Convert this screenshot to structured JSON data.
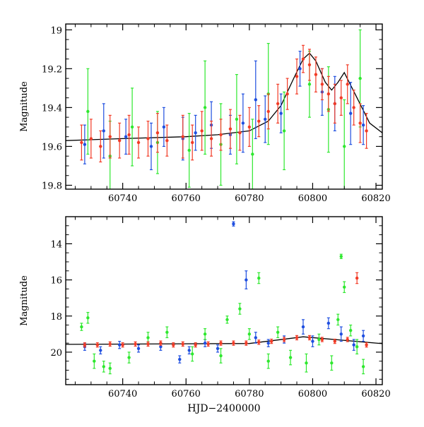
{
  "colors": {
    "blue": "#1f4fe0",
    "green": "#2ee82e",
    "red": "#f23b26",
    "model": "#000000",
    "axis": "#000000",
    "background": "#ffffff"
  },
  "chart_data": [
    {
      "type": "scatter",
      "panel": "top",
      "title": "",
      "xlabel": "",
      "ylabel": "Magnitude",
      "xlim": [
        60722,
        60822
      ],
      "ylim": [
        19.82,
        18.97
      ],
      "y_inverted": true,
      "xticks": [
        60740,
        60760,
        60780,
        60800,
        60820
      ],
      "xtick_labels": [
        "60740",
        "60760",
        "60780",
        "60800",
        "60820"
      ],
      "yticks": [
        19.0,
        19.2,
        19.4,
        19.6,
        19.8
      ],
      "ytick_labels": [
        "19",
        "19.2",
        "19.4",
        "19.6",
        "19.8"
      ],
      "grid": false,
      "legend": "none",
      "error_bars": true,
      "model_curve": {
        "x": [
          60722,
          60740,
          60760,
          60770,
          60780,
          60786,
          60790,
          60794,
          60797,
          60799,
          60801,
          60804,
          60806,
          60808,
          60810,
          60814,
          60818,
          60822
        ],
        "y": [
          19.57,
          19.56,
          19.55,
          19.54,
          19.52,
          19.47,
          19.39,
          19.25,
          19.15,
          19.12,
          19.16,
          19.27,
          19.31,
          19.27,
          19.22,
          19.35,
          19.48,
          19.53
        ]
      },
      "series": [
        {
          "color": "blue",
          "x": [
            60728,
            60734,
            60741,
            60749,
            60753,
            60759,
            60763,
            60768,
            60774,
            60778,
            60782,
            60785,
            60790,
            60796,
            60803,
            60807,
            60812,
            60816
          ],
          "y": [
            19.59,
            19.52,
            19.55,
            19.6,
            19.5,
            19.56,
            19.53,
            19.49,
            19.54,
            19.48,
            19.36,
            19.46,
            19.43,
            19.2,
            19.32,
            19.38,
            19.43,
            19.49
          ],
          "err": [
            0.1,
            0.14,
            0.09,
            0.12,
            0.1,
            0.11,
            0.09,
            0.12,
            0.1,
            0.15,
            0.2,
            0.12,
            0.1,
            0.09,
            0.12,
            0.14,
            0.16,
            0.1
          ]
        },
        {
          "color": "green",
          "x": [
            60729,
            60736,
            60743,
            60751,
            60761,
            60766,
            60771,
            60776,
            60781,
            60786,
            60791,
            60799,
            60805,
            60810,
            60815
          ],
          "y": [
            19.42,
            19.65,
            19.5,
            19.58,
            19.62,
            19.4,
            19.59,
            19.46,
            19.64,
            19.33,
            19.52,
            19.28,
            19.41,
            19.6,
            19.25
          ],
          "err": [
            0.22,
            0.18,
            0.2,
            0.16,
            0.19,
            0.24,
            0.21,
            0.23,
            0.18,
            0.26,
            0.2,
            0.17,
            0.22,
            0.24,
            0.25
          ]
        },
        {
          "color": "red",
          "x": [
            60727,
            60730,
            60733,
            60736,
            60739,
            60742,
            60745,
            60748,
            60751,
            60754,
            60759,
            60762,
            60765,
            60768,
            60771,
            60774,
            60777,
            60780,
            60783,
            60786,
            60789,
            60792,
            60795,
            60797,
            60799,
            60801,
            60803,
            60805,
            60807,
            60809,
            60811,
            60813,
            60815,
            60817
          ],
          "y": [
            19.58,
            19.56,
            19.6,
            19.55,
            19.57,
            19.54,
            19.58,
            19.56,
            19.53,
            19.57,
            19.55,
            19.58,
            19.52,
            19.56,
            19.54,
            19.51,
            19.53,
            19.5,
            19.47,
            19.42,
            19.38,
            19.33,
            19.24,
            19.15,
            19.18,
            19.23,
            19.28,
            19.33,
            19.38,
            19.35,
            19.28,
            19.4,
            19.48,
            19.52
          ],
          "err": [
            0.09,
            0.1,
            0.08,
            0.11,
            0.09,
            0.1,
            0.08,
            0.09,
            0.1,
            0.08,
            0.11,
            0.09,
            0.1,
            0.09,
            0.08,
            0.1,
            0.09,
            0.1,
            0.08,
            0.09,
            0.1,
            0.08,
            0.09,
            0.07,
            0.08,
            0.09,
            0.08,
            0.09,
            0.1,
            0.09,
            0.1,
            0.09,
            0.1,
            0.09
          ]
        }
      ]
    },
    {
      "type": "scatter",
      "panel": "bottom",
      "title": "",
      "xlabel": "HJD−2400000",
      "ylabel": "Magnitude",
      "xlim": [
        60722,
        60822
      ],
      "ylim": [
        21.8,
        12.5
      ],
      "y_inverted": true,
      "xticks": [
        60740,
        60760,
        60780,
        60800,
        60820
      ],
      "xtick_labels": [
        "60740",
        "60760",
        "60780",
        "60800",
        "60820"
      ],
      "yticks": [
        14,
        16,
        18,
        20
      ],
      "ytick_labels": [
        "14",
        "16",
        "18",
        "20"
      ],
      "grid": false,
      "legend": "none",
      "error_bars": true,
      "model_curve": {
        "x": [
          60722,
          60780,
          60797,
          60822
        ],
        "y": [
          19.57,
          19.52,
          19.15,
          19.53
        ]
      },
      "series": [
        {
          "color": "blue",
          "x": [
            60728,
            60733,
            60739,
            60745,
            60752,
            60758,
            60761,
            60766,
            60770,
            60775,
            60779,
            60782,
            60786,
            60791,
            60797,
            60800,
            60805,
            60809,
            60813,
            60816
          ],
          "y": [
            19.7,
            19.9,
            19.6,
            19.8,
            19.7,
            20.4,
            19.9,
            19.5,
            19.8,
            12.9,
            16.0,
            19.2,
            19.5,
            19.3,
            18.6,
            19.4,
            18.4,
            19.0,
            19.6,
            19.1
          ],
          "err": [
            0.2,
            0.2,
            0.2,
            0.2,
            0.2,
            0.2,
            0.2,
            0.2,
            0.2,
            0.12,
            0.5,
            0.3,
            0.2,
            0.2,
            0.4,
            0.3,
            0.3,
            0.4,
            0.3,
            0.3
          ]
        },
        {
          "color": "green",
          "x": [
            60727,
            60729,
            60731,
            60734,
            60736,
            60742,
            60748,
            60754,
            60762,
            60766,
            60771,
            60773,
            60777,
            60780,
            60783,
            60786,
            60789,
            60793,
            60798,
            60802,
            60806,
            60808,
            60809,
            60810,
            60812,
            60814,
            60816
          ],
          "y": [
            18.6,
            18.1,
            20.5,
            20.8,
            20.9,
            20.3,
            19.2,
            18.9,
            20.1,
            19.0,
            20.2,
            18.2,
            17.6,
            19.0,
            15.9,
            20.5,
            18.9,
            20.3,
            20.6,
            19.3,
            20.6,
            18.2,
            14.7,
            16.4,
            18.8,
            19.7,
            20.8
          ],
          "err": [
            0.2,
            0.3,
            0.4,
            0.3,
            0.3,
            0.3,
            0.3,
            0.3,
            0.4,
            0.3,
            0.4,
            0.2,
            0.3,
            0.3,
            0.3,
            0.4,
            0.3,
            0.4,
            0.5,
            0.3,
            0.4,
            0.3,
            0.12,
            0.3,
            0.3,
            0.4,
            0.4
          ]
        },
        {
          "color": "red",
          "x": [
            60728,
            60732,
            60736,
            60740,
            60744,
            60748,
            60752,
            60756,
            60759,
            60763,
            60767,
            60771,
            60775,
            60779,
            60783,
            60787,
            60791,
            60795,
            60799,
            60803,
            60807,
            60811,
            60814,
            60817
          ],
          "y": [
            19.6,
            19.6,
            19.55,
            19.6,
            19.55,
            19.55,
            19.5,
            19.6,
            19.55,
            19.6,
            19.55,
            19.5,
            19.5,
            19.5,
            19.45,
            19.4,
            19.3,
            19.2,
            19.2,
            19.3,
            19.4,
            19.3,
            15.9,
            19.6
          ],
          "err": [
            0.12,
            0.12,
            0.12,
            0.12,
            0.12,
            0.12,
            0.12,
            0.12,
            0.12,
            0.12,
            0.12,
            0.12,
            0.12,
            0.12,
            0.12,
            0.12,
            0.12,
            0.12,
            0.12,
            0.12,
            0.12,
            0.12,
            0.3,
            0.12
          ]
        }
      ]
    }
  ]
}
